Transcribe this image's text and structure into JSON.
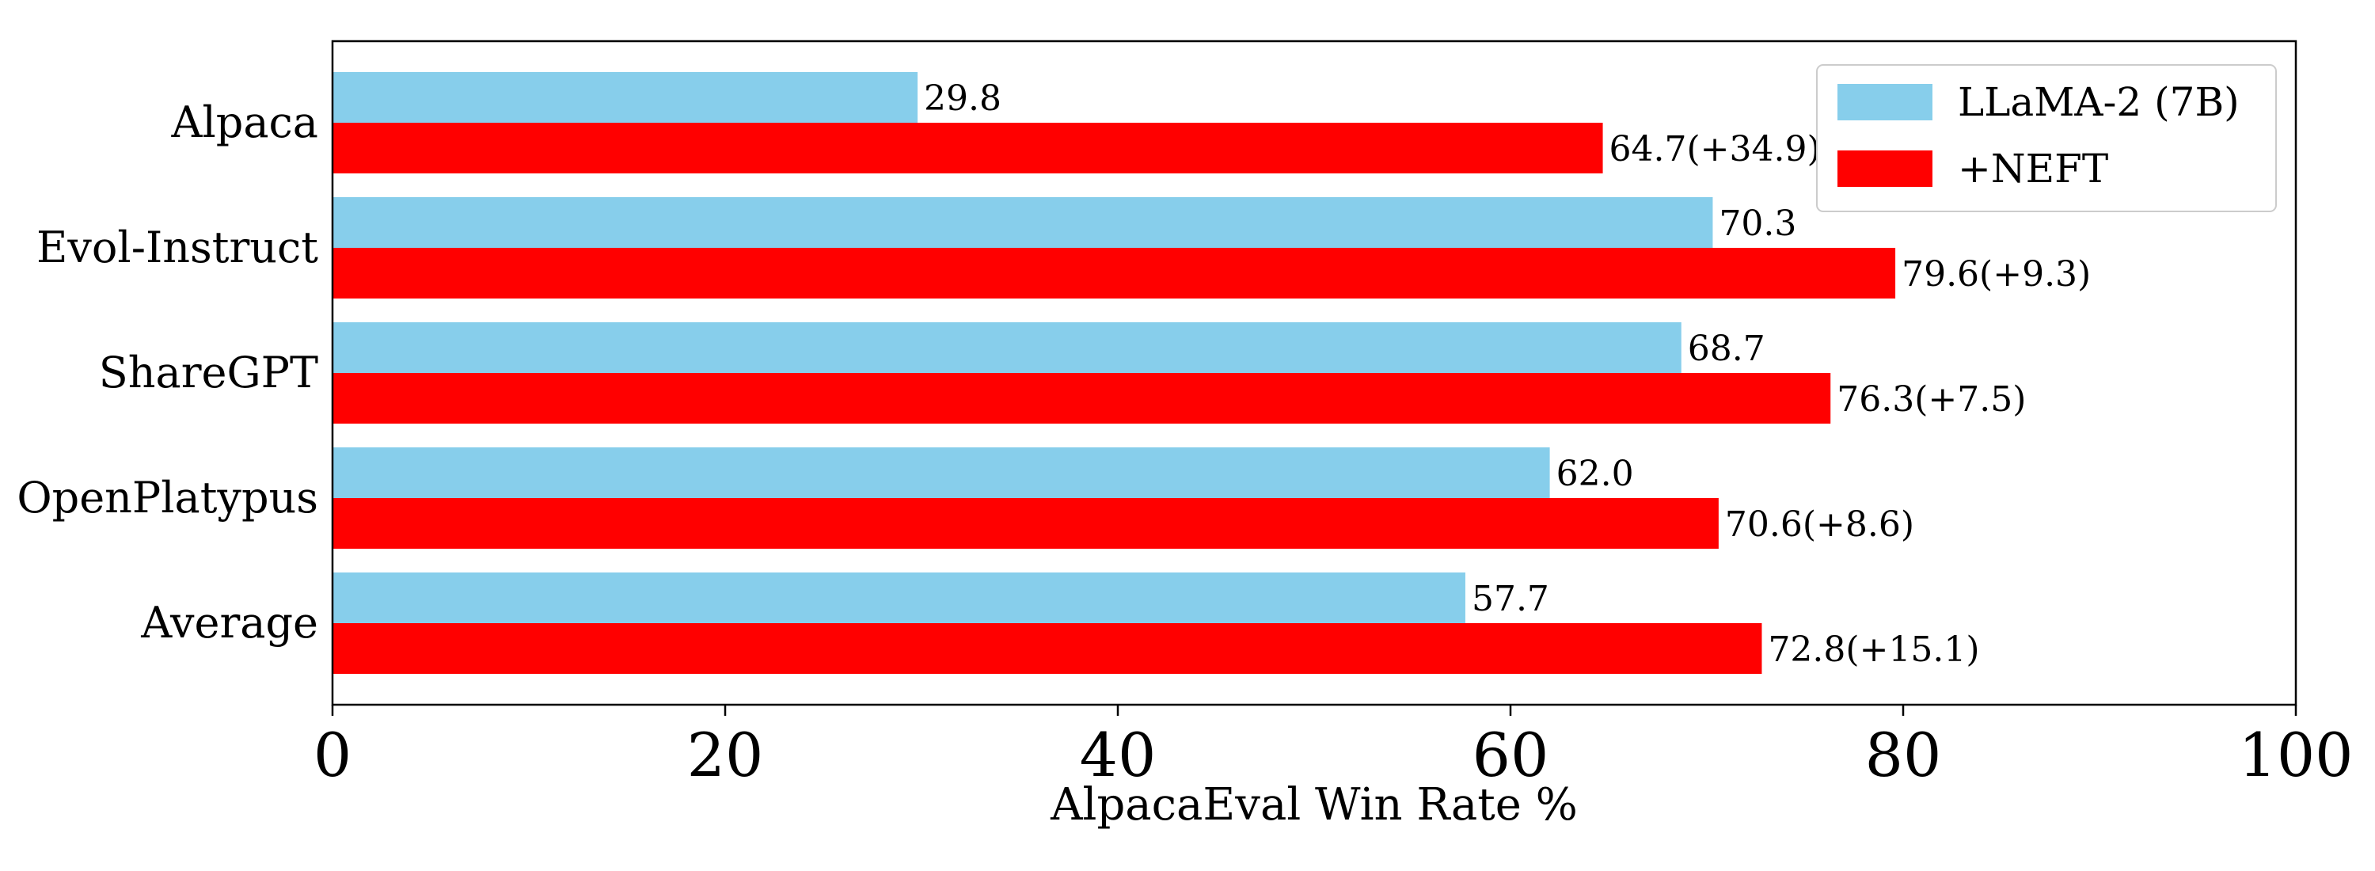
{
  "colors": {
    "base": "#87ceeb",
    "neft": "#ff0000"
  },
  "chart_data": {
    "type": "bar",
    "orientation": "horizontal",
    "categories": [
      "Alpaca",
      "Evol-Instruct",
      "ShareGPT",
      "OpenPlatypus",
      "Average"
    ],
    "series": [
      {
        "name": "LLaMA-2 (7B)",
        "values": [
          29.8,
          70.3,
          68.7,
          62.0,
          57.7
        ],
        "labels": [
          "29.8",
          "70.3",
          "68.7",
          "62.0",
          "57.7"
        ]
      },
      {
        "name": "+NEFT",
        "values": [
          64.7,
          79.6,
          76.3,
          70.6,
          72.8
        ],
        "labels": [
          "64.7(+34.9)",
          "79.6(+9.3)",
          "76.3(+7.5)",
          "70.6(+8.6)",
          "72.8(+15.1)"
        ]
      }
    ],
    "xlabel": "AlpacaEval Win Rate %",
    "xlim": [
      0,
      100
    ],
    "xticks": [
      "0",
      "20",
      "40",
      "60",
      "80",
      "100"
    ],
    "legend_position": "top-right",
    "grid": false
  }
}
